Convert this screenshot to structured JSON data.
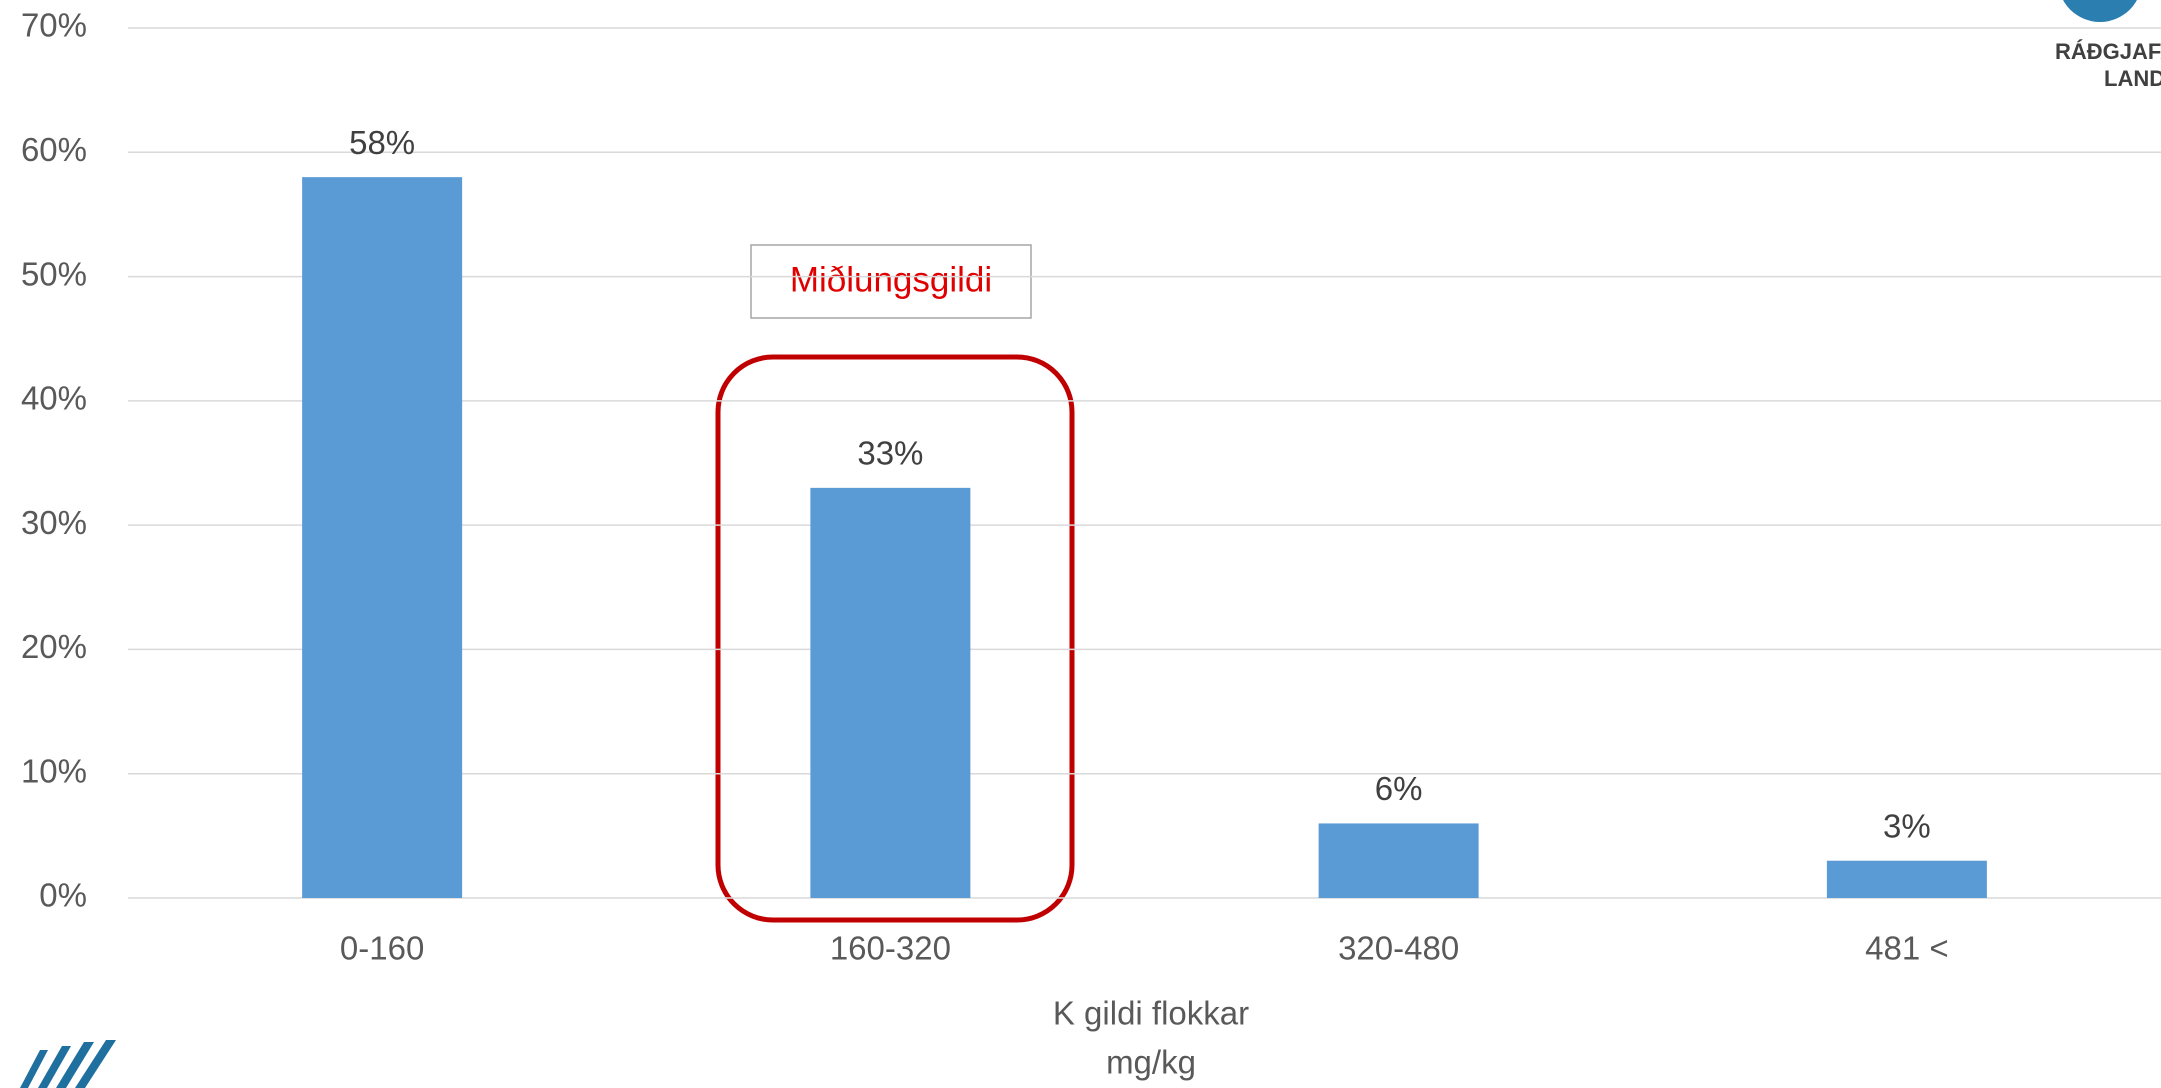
{
  "chart_data": {
    "type": "bar",
    "categories": [
      "0-160",
      "160-320",
      "320-480",
      "481 <"
    ],
    "values": [
      58,
      33,
      6,
      3
    ],
    "value_labels": [
      "58%",
      "33%",
      "6%",
      "3%"
    ],
    "color": "#5b9bd5",
    "ylim": [
      0,
      70
    ],
    "yticks": [
      {
        "value": 0,
        "label": "0%"
      },
      {
        "value": 10,
        "label": "10%"
      },
      {
        "value": 20,
        "label": "20%"
      },
      {
        "value": 30,
        "label": "30%"
      },
      {
        "value": 40,
        "label": "40%"
      },
      {
        "value": 50,
        "label": "50%"
      },
      {
        "value": 60,
        "label": "60%"
      },
      {
        "value": 70,
        "label": "70%"
      }
    ],
    "grid": true,
    "x_label": [
      "K gildi flokkar",
      "mg/kg"
    ],
    "annotation": "Miðlungsgildi",
    "logo_text": [
      "RÁÐGJAFA",
      "LAND"
    ]
  }
}
